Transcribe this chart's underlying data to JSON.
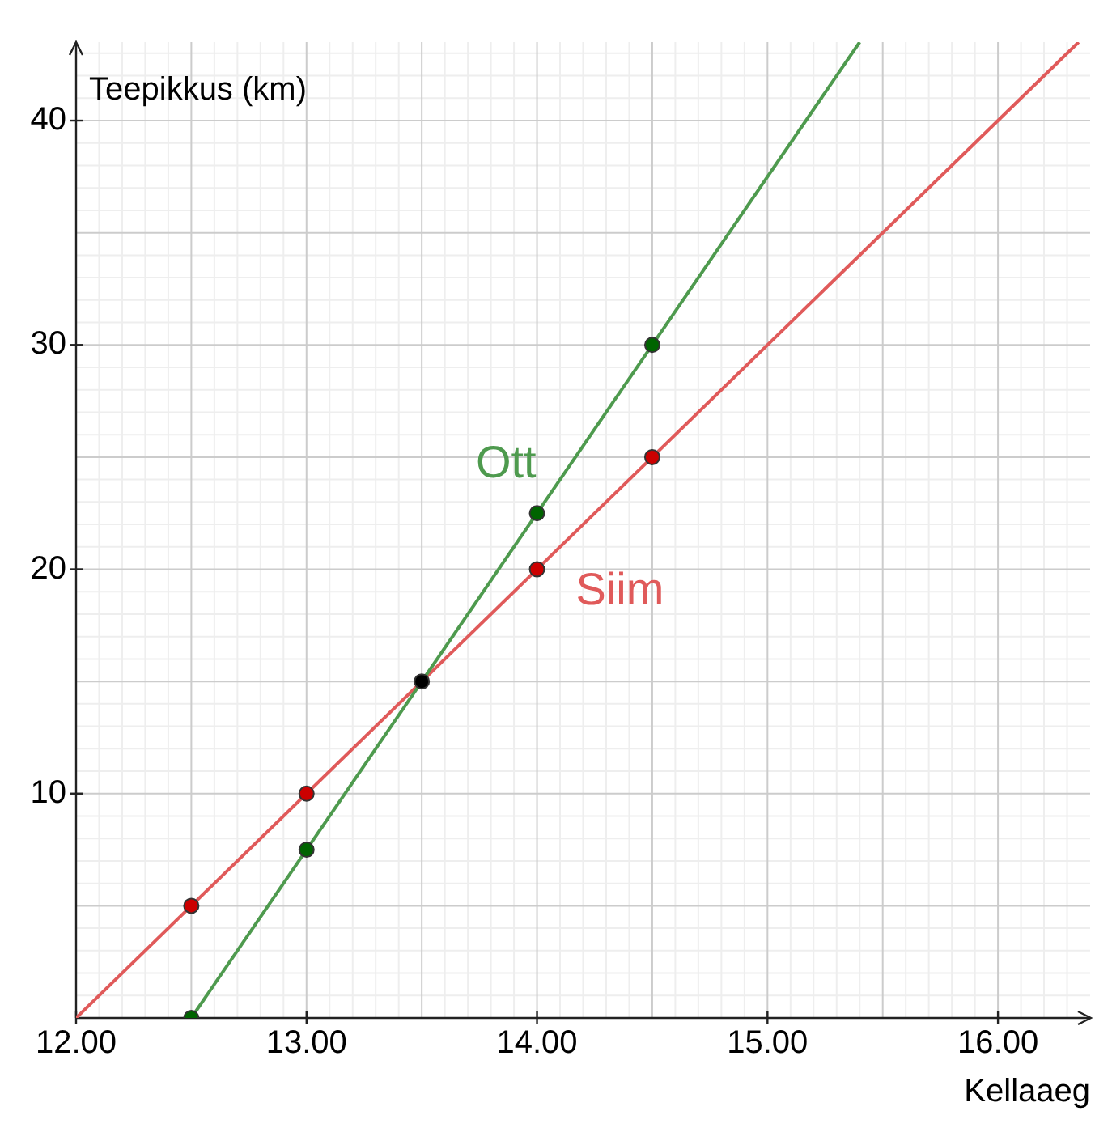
{
  "chart_data": {
    "type": "line",
    "xlabel": "Kellaaeg",
    "ylabel": "Teepikkus (km)",
    "xlim": [
      12,
      16.4
    ],
    "ylim": [
      0,
      43.5
    ],
    "xticks": [
      {
        "value": 12,
        "label": "12.00"
      },
      {
        "value": 12.5,
        "label": null
      },
      {
        "value": 13,
        "label": "13.00"
      },
      {
        "value": 13.5,
        "label": null
      },
      {
        "value": 14,
        "label": "14.00"
      },
      {
        "value": 14.5,
        "label": null
      },
      {
        "value": 15,
        "label": "15.00"
      },
      {
        "value": 15.5,
        "label": null
      },
      {
        "value": 16,
        "label": "16.00"
      }
    ],
    "yticks": [
      {
        "value": 5,
        "label": null
      },
      10,
      {
        "value": 15,
        "label": null
      },
      20,
      {
        "value": 25,
        "label": null
      },
      30,
      {
        "value": 35,
        "label": null
      },
      40
    ],
    "grid": true,
    "legend": false,
    "marker": "circle",
    "series": [
      {
        "name": "Ott",
        "color": "#4e9a4e",
        "x": [
          12.5,
          15.4
        ],
        "values": [
          0,
          43.5
        ],
        "marker": "none"
      },
      {
        "name": "Siim",
        "color": "#e05a5a",
        "x": [
          12,
          16.35
        ],
        "values": [
          0,
          43.5
        ],
        "marker": "none"
      },
      {
        "type": "scatter",
        "color": "#006400",
        "x": [
          12.5,
          13,
          14,
          14.5
        ],
        "values": [
          0,
          7.5,
          22.5,
          30
        ]
      },
      {
        "type": "scatter",
        "color": "#cc0000",
        "x": [
          12.5,
          13,
          14,
          14.5
        ],
        "values": [
          5,
          10,
          20,
          25
        ]
      },
      {
        "type": "scatter",
        "color": "#000000",
        "x": [
          13.5
        ],
        "values": [
          15
        ]
      }
    ]
  }
}
